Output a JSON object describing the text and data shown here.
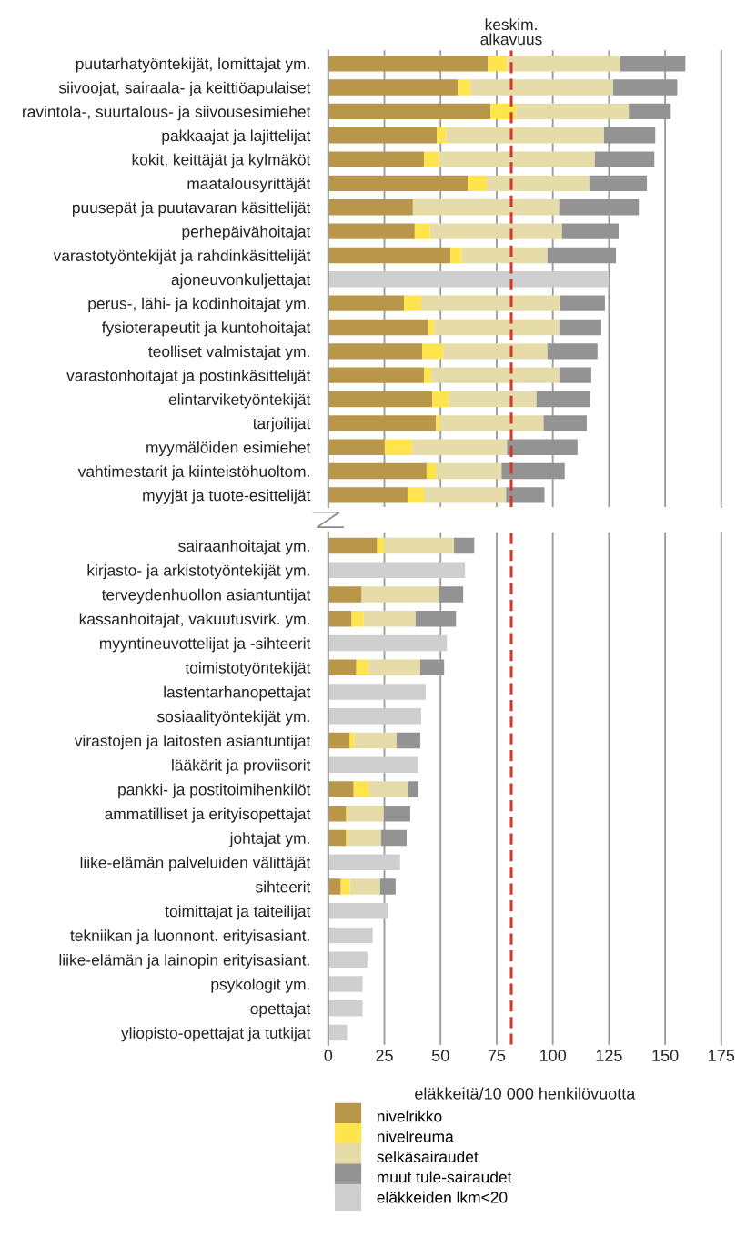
{
  "chart_data": [
    {
      "type": "bar",
      "orientation": "horizontal",
      "stacked": true,
      "xlim": [
        0,
        175
      ],
      "tick_labels": "y",
      "grid": "x",
      "legend": false,
      "categories": [
        "puutarhatyöntekijät, lomittajat ym.",
        "siivoojat, sairaala- ja keittiöapulaiset",
        "ravintola-, suurtalous- ja siivousesimiehet",
        "pakkaajat ja lajittelijat",
        "kokit, keittäjät ja kylmäköt",
        "maatalousyrittäjät",
        "puusepät ja puutavaran käsittelijät",
        "perhepäivähoitajat",
        "varastotyöntekijät ja rahdinkäsittelijät",
        "ajoneuvonkuljettajat",
        "perus-, lähi- ja kodinhoitajat ym.",
        "fysioterapeutit ja kuntohoitajat",
        "teolliset valmistajat ym.",
        "varastonhoitajat ja postinkäsittelijät",
        "elintarviketyöntekijät",
        "tarjoilijat",
        "myymälöiden esimiehet",
        "vahtimestarit ja kiinteistöhuoltom.",
        "myyjät ja tuote-esittelijät"
      ],
      "series": [
        {
          "color": "#b8974a",
          "values": [
            71.1,
            57.7,
            72.3,
            48.3,
            42.6,
            62.1,
            37.7,
            38.5,
            54.4,
            null,
            33.7,
            44.6,
            41.8,
            42.6,
            46.3,
            47.9,
            25.1,
            43.8,
            35.3
          ]
        },
        {
          "color": "#ffe44d",
          "values": [
            8.5,
            5.5,
            11.3,
            4.1,
            6.8,
            8.5,
            null,
            6.8,
            4.9,
            null,
            7.7,
            2.5,
            9.4,
            3.3,
            7.3,
            1.6,
            12.2,
            4.1,
            7.3
          ]
        },
        {
          "color": "#e5dcaa",
          "values": [
            50.5,
            63.7,
            50.2,
            70.4,
            69.3,
            45.7,
            65.1,
            58.8,
            38.3,
            null,
            61.9,
            55.8,
            46.4,
            57.0,
            39.1,
            46.4,
            42.3,
            29.3,
            36.6
          ]
        },
        {
          "color": "#939393",
          "values": [
            28.9,
            28.5,
            18.7,
            22.8,
            26.5,
            25.6,
            35.5,
            25.2,
            30.5,
            null,
            19.9,
            18.7,
            22.3,
            14.2,
            24.0,
            19.2,
            31.4,
            28.1,
            17.1
          ]
        },
        {
          "color": "#cfcfcf",
          "values": [
            null,
            null,
            null,
            null,
            null,
            null,
            null,
            null,
            null,
            124.8,
            null,
            null,
            null,
            null,
            null,
            null,
            null,
            null,
            null
          ]
        }
      ],
      "ref_lines": [
        {
          "axis": "x",
          "value": 81.5,
          "label": "keskim.\nalkavuus",
          "color": "#d03a2e",
          "line_style": "dashed"
        }
      ]
    },
    {
      "type": "bar",
      "orientation": "horizontal",
      "stacked": true,
      "xlim": [
        0,
        175
      ],
      "xticks": [
        0,
        25,
        50,
        75,
        100,
        125,
        150,
        175
      ],
      "grid": "x",
      "legend": "bottom",
      "xlabel": "eläkkeitä/10 000 henkilövuotta",
      "categories": [
        "sairaanhoitajat ym.",
        "kirjasto- ja arkistotyöntekijät ym.",
        "terveydenhuollon asiantuntijat",
        "kassanhoitajat, vakuutusvirk. ym.",
        "myyntineuvottelijat ja -sihteerit",
        "toimistotyöntekijät",
        "lastentarhanopettajat",
        "sosiaalityöntekijät ym.",
        "virastojen ja laitosten asiantuntijat",
        "lääkärit ja proviisorit",
        "pankki- ja postitoimihenkilöt",
        "ammatilliset ja erityisopettajat",
        "johtajat ym.",
        "liike-elämän palveluiden välittäjät",
        "sihteerit",
        "toimittajat ja taiteilijat",
        "tekniikan ja luonnont. erityisasiant.",
        "liike-elämän ja lainopin erityisasiant.",
        "psykologit ym.",
        "opettajat",
        "yliopisto-opettajat ja tutkijat"
      ],
      "series": [
        {
          "name": "nivelrikko",
          "color": "#b8974a",
          "values": [
            21.8,
            null,
            14.9,
            10.4,
            null,
            12.5,
            null,
            null,
            9.6,
            null,
            11.3,
            8.0,
            8.0,
            null,
            5.6,
            null,
            null,
            null,
            null,
            null,
            null
          ]
        },
        {
          "name": "nivelreuma",
          "color": "#ffe44d",
          "values": [
            3.0,
            null,
            null,
            5.3,
            null,
            5.3,
            null,
            null,
            2.1,
            null,
            6.9,
            0.8,
            0.8,
            null,
            4.0,
            null,
            null,
            null,
            null,
            null,
            null
          ]
        },
        {
          "name": "selkäsairaudet",
          "color": "#e5dcaa",
          "values": [
            31.2,
            null,
            34.6,
            23.2,
            null,
            23.2,
            null,
            null,
            18.7,
            null,
            17.5,
            15.9,
            14.7,
            null,
            13.5,
            null,
            null,
            null,
            null,
            null,
            null
          ]
        },
        {
          "name": "muut tule-sairaudet",
          "color": "#939393",
          "values": [
            9.0,
            null,
            10.6,
            18.0,
            null,
            10.6,
            null,
            null,
            10.6,
            null,
            4.5,
            11.8,
            11.4,
            null,
            6.9,
            null,
            null,
            null,
            null,
            null,
            null
          ]
        },
        {
          "name": "eläkkeiden lkm<20",
          "color": "#cfcfcf",
          "values": [
            null,
            60.9,
            null,
            null,
            52.8,
            null,
            43.4,
            41.4,
            null,
            40.2,
            null,
            null,
            null,
            32.0,
            null,
            26.7,
            19.8,
            17.4,
            15.3,
            15.3,
            8.4
          ]
        }
      ],
      "ref_lines": [
        {
          "axis": "x",
          "value": 81.5,
          "color": "#d03a2e",
          "line_style": "dashed"
        }
      ]
    }
  ]
}
